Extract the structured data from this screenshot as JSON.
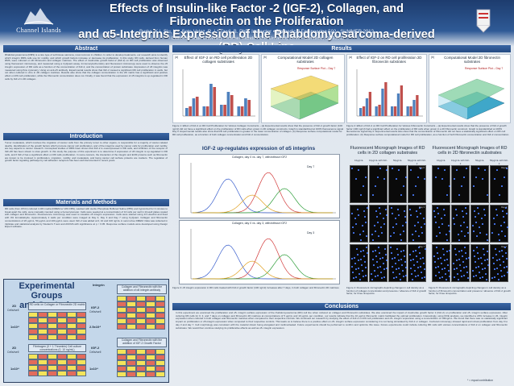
{
  "header": {
    "org_name": "Channel Islands",
    "title_line1": "Effects of Insulin-like Factor -2 (IGF-2), Collagen, and Fibronectin on the Proliferation",
    "title_line2": "and α5-Integrins Expression of the Rhabdomyosarcoma-derived (RD) Cell Line",
    "authors": "Burke, K.¹, Siu, V.¹, Soto-Velez, R. ¹ * Tawil, B. PhD, Instructor • Biomedical Engineering 502 : SUMMER 2012",
    "affiliation": "¹ California State University Channel Islands • One University Drive • Camarillo, CA 93012"
  },
  "sections": {
    "abstract": "Abstract",
    "introduction": "Introduction",
    "methods": "Materials and Methods",
    "results": "Results",
    "conclusions": "Conclusions"
  },
  "body": {
    "abstract_text": "Rhabdomyosarcoma (RMS) is a rare type of soft tissue sarcoma, most common in children. In order to develop treatments, our research aims to identify which integrin RMS cells use for motility, and which growth factors increase or decrease its proliferation. In this study, RD cells, derived from human RMS, were cultured on 2D fibronectin and collagen matrices. The effect of insulin-like growth factor-2 (IGF-2) on RD cell proliferation was observed using fluorescent microscopy, and measured using a CyQuant assay. Immunocytochemistry and fluorescent microscopy were used to observe the α5 integrin expression of RD cells as a function of the concentration of IGF-2, and the concentration of protein substrates. Expression of α5 integrins was measured using flow cytometry. Using an anti-α5 antibody. Experimental results show that IGF-2 caused a significant RD cell proliferation in wells, but not when cultured in vitro in 2D collagen matrices. Results also show that the collagen concentration in the 2D matrix has a significant and positive effect on RD cell proliferation, while the fibronectin concentration does not. Finally, it was found that the expression of α5 integrins is up-regulated in RD cells by IGF-2 in 2D collagen.",
    "intro_text": "Tumor metastasis, which involves the migration of cancer cells from the primary tumor to other organs, is responsible for a majority of cancer-related deaths. Identification of the growth factors which promote cancer cell proliferation, and of the integrins used by cancer cells for proliferation and motility, are key aspects to cancer research. Conceptual studies of RMS have shown that IGF-2 is overexpressed in RD cells, and inhibition of the receptor of IGF-2R has been shown to slow growth. In this study the purpose of this experiment is to determine if expression of α5 integrin is up-regulated in RD cells, and if IGF-2 has a significant effect on RD cells proliferation. In some cancers, the interaction of the integrin and ECM proteins such as fibronectin are known to be involved in proliferation, migration, motility, and metastasis, and being cancer cell surface proteins are markers. The regulation of growth factor signaling pathways by cell adhesion receptors has been well documented in recent years.",
    "methods_text": "RD cells (from ATCC) cultured in RD media (DMEM w/ 10% FBS), washed with sterile Phosphate Buffered Saline (PBS) and trypsinized for 3 minutes to break apart the cells, were manually counted using a hemocytometer. Cells were seeded at a concentration of 10 cells per well in 24-well plates coated with collagen and fibronectin. Fluorescence microscopy was used to visualize α5 integrin expression. Cells were stained using 1X Hoechst and fixed with 4% formaldehyde. Approximately 2 wells per condition were imaged at Day 0, Day 3 and Day 7 using CyQuant. Collagen and fibronectin concentrations of 20 μg/mL, 50 μg/mL and 100 μg/mL were used. IGF-2 was added at 0, 10 and 100 ng/mL in serum-free DMEM. Data was collected in triplicate and statistical analysis by Student's T-test and ANOVA with significance at p < 0.05. Response surface models were developed using Design Expert software.",
    "conclusions_text": "In this experiment we examined the proliferation and α5- integrin surface expression of the rhabdomyosarcoma (RD) cell line when cultured on collagen and fibronectin substrates. We also examined the impact of insulin-like growth factor 2 (IGF-2) on proliferation and α5- integrin surface expression. After culturing RD cells for 0, 3, and 7 days on collagen and fibronectin 2D matrices at concentrations of 5 μg/mL and 10 μg/mL per condition, our results indicate that the 10 μg/mL fibronectin matrix facilitated the optimal proliferation. Interestingly, using DOE analysis, we identified a 20% increase in α5- integrin expression when cultured in both collagen and fibronectin matrices when compared to their respective controls. We continued our research by studying the effect of IGF-2 on RD cell proliferation and α5- integrin expression using a concentration of 100ng/mL. We found that there was no statistically significant impact on proliferation or α5-integrin expression when compared to their respective controls. This leads us to believe there is a positive effect on α5- integrin surface expression considering it is not being stimulated by IGF-2 or collagen. Confocal microscopy showed rapid and robust proliferation from day 0 to day 3 and day 7. Cell morphology was consistent with the material shown being elongated and multinucleated. Future experiments should be performed to confirm and optimize this issue. Future experiments could include culturing RD cells with various concentrations of IGF-2 on collagen and fibronectin substrates. We would then continue studying its proliferative effects as well as α5- integrin expression.",
    "significance_note": "* = equal contribution"
  },
  "groups": {
    "title_line1": "Experimental Groups",
    "title_line2": "and Controls",
    "integrin_header": "Integrin",
    "cells_well": "Cells/well",
    "rows_left": [
      "2D",
      "1x10⁴",
      "2D",
      "1x10⁴"
    ],
    "rows_mid": [
      "IGF-2",
      "2.5x10⁴",
      "IGF-2",
      "1x10⁴"
    ],
    "desc_top": "RD cells on Collagen or Fibronectin 2D matrix",
    "desc_bottom": "Fibrinogen (0 + 1 Thrombin) Cell culture concentrations (0, 10 ng/mL)",
    "desc_r1": "Collagen and Fibronectin with the addition of α5 integrin antibody",
    "desc_r2": "Collagen and Fibronectin with the addition of IGF-2 Growth Factor"
  },
  "figures": {
    "fig1a_title": "Effect of IGF-2 on RD cell proliferation 2D collagen substrates",
    "fig1b_title": "Computational Model 2D collagen substrates",
    "fig2a_title": "Effect of IGF-2 on RD cell proliferation 2D fibronectin substrates",
    "fig2b_title": "Computational Model 2D fibronectin substrates",
    "panel_a": "(a)",
    "panel_b": "(b)",
    "response_surface": "Response Surface Plot – Day 7",
    "fig1_caption": "Figure 1: Effect of IGF-2 on RD Cell Proliferation for Various Collagen Constructs – (a) Experimental results show that the presence of IGF-2 growth factor (100 ng/ml) did not have a significant effect on the proliferation of RD cells when grown in 2D collagen constructs. Graph is standardized at 100% fluorescence signal Day 0. Experimental results also show that RD cell proliferation is greater in the lower concentration of collagen. (b) Response surface computational model for RD cell proliferation, as a function of both collagen concentration and IGF-2 concentration.",
    "fig2_caption": "Figure 2: Effect of IGF-2 on RD Cell Proliferation for Various Fibronectin Constructs – (a) Experimental results show that the presence of IGF-2 growth factor (100 ng/ml) had a significant effect on the proliferation of RD cells when grown in a 2D fibronectin construct. Graph is standardized at 100% fluorescence signal Day 0. Experimental results also show that the concentration of fibronectin did not have a statistically significant effect on RD cell proliferation. (b) Response surface computational model for RD cell proliferation, as a function of both fibronectin concentration and IGF-2 concentration.",
    "igf_title": "IGF-2 up-regulates expression of α5 integrins",
    "mini1_title": "Collagen, day 0 vs. day 7, with/without IGF2",
    "mini2_title": "Collagen, day 0 vs. day 3, with/without IGF2",
    "day0": "Day 0",
    "day3": "Day 3",
    "day7": "Day 7",
    "fig3_caption": "Figure 3: α5 integrin expression in RD cells treated with IGF-2 growth factor (100 ng/ml) increases after 7 days, in both collagen and fibronectin 2D matrices.",
    "fm1_title": "Fluorescent Micrograph Images of RD cells in 2D collagen substrates",
    "fm2_title": "Fluorescent Micrograph Images of RD cells in 2D fibronectin substrates",
    "fm_labels": [
      "10μg/mL",
      "10μg/mL with IGF-2",
      "50μg/mL",
      "50μg/mL with IGF-2"
    ],
    "fm_days": [
      "Day 0",
      "Day 3",
      "Day 7"
    ],
    "fig4_caption": "Figure 4: Fluorescent micrographs depicting changes in cell density as a function of collagen concentration and presence / absence of IGF-2 growth factor, for three timepoints.",
    "fig5_caption": "Figure 5: Fluorescent micrographs depicting changes in cell density as a function of fibronectin concentration and presence / absence of IGF-2 growth factor, for three timepoints."
  },
  "colors": {
    "header_blue": "#1d3c6e",
    "section_blue": "#2f5a96",
    "bar_blue": "#4f81bd",
    "bar_red": "#c0504d",
    "cell_yellow": "#f3e45a",
    "cell_red": "#e26b5b"
  }
}
